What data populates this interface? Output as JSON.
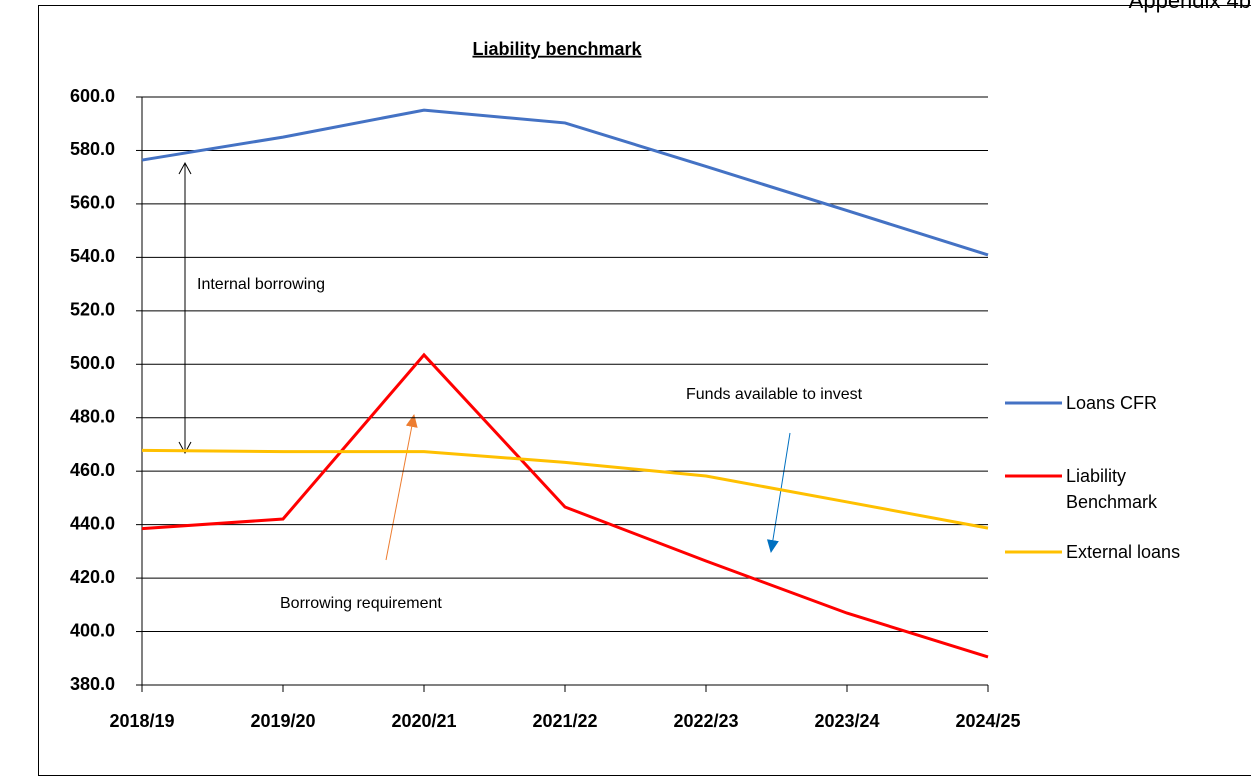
{
  "chart_data": {
    "type": "line",
    "page_label": "Appendix 4b",
    "title": "Liability benchmark",
    "categories": [
      "2018/19",
      "2019/20",
      "2020/21",
      "2021/22",
      "2022/23",
      "2023/24",
      "2024/25"
    ],
    "series": [
      {
        "name": "Loans CFR",
        "color": "#4472c4",
        "values": [
          576.4,
          585.0,
          595.1,
          590.3,
          574.0,
          557.5,
          540.9
        ]
      },
      {
        "name": "Liability Benchmark",
        "color": "#ff0000",
        "values": [
          438.5,
          442.1,
          503.5,
          446.6,
          426.4,
          406.9,
          390.5
        ]
      },
      {
        "name": "External loans",
        "color": "#ffc000",
        "values": [
          467.8,
          467.3,
          467.3,
          463.3,
          458.2,
          448.5,
          438.7
        ]
      }
    ],
    "ylim": [
      380,
      600
    ],
    "yticks": [
      {
        "value": 380,
        "label": "380.0"
      },
      {
        "value": 400,
        "label": "400.0"
      },
      {
        "value": 420,
        "label": "420.0"
      },
      {
        "value": 440,
        "label": "440.0"
      },
      {
        "value": 460,
        "label": "460.0"
      },
      {
        "value": 480,
        "label": "480.0"
      },
      {
        "value": 500,
        "label": "500.0"
      },
      {
        "value": 520,
        "label": "520.0"
      },
      {
        "value": 540,
        "label": "540.0"
      },
      {
        "value": 560,
        "label": "560.0"
      },
      {
        "value": 580,
        "label": "580.0"
      },
      {
        "value": 600,
        "label": "600.0"
      }
    ],
    "grid": true,
    "legend": "right",
    "annotations": [
      "Internal borrowing",
      "Borrowing requirement",
      "Funds available to invest"
    ]
  }
}
